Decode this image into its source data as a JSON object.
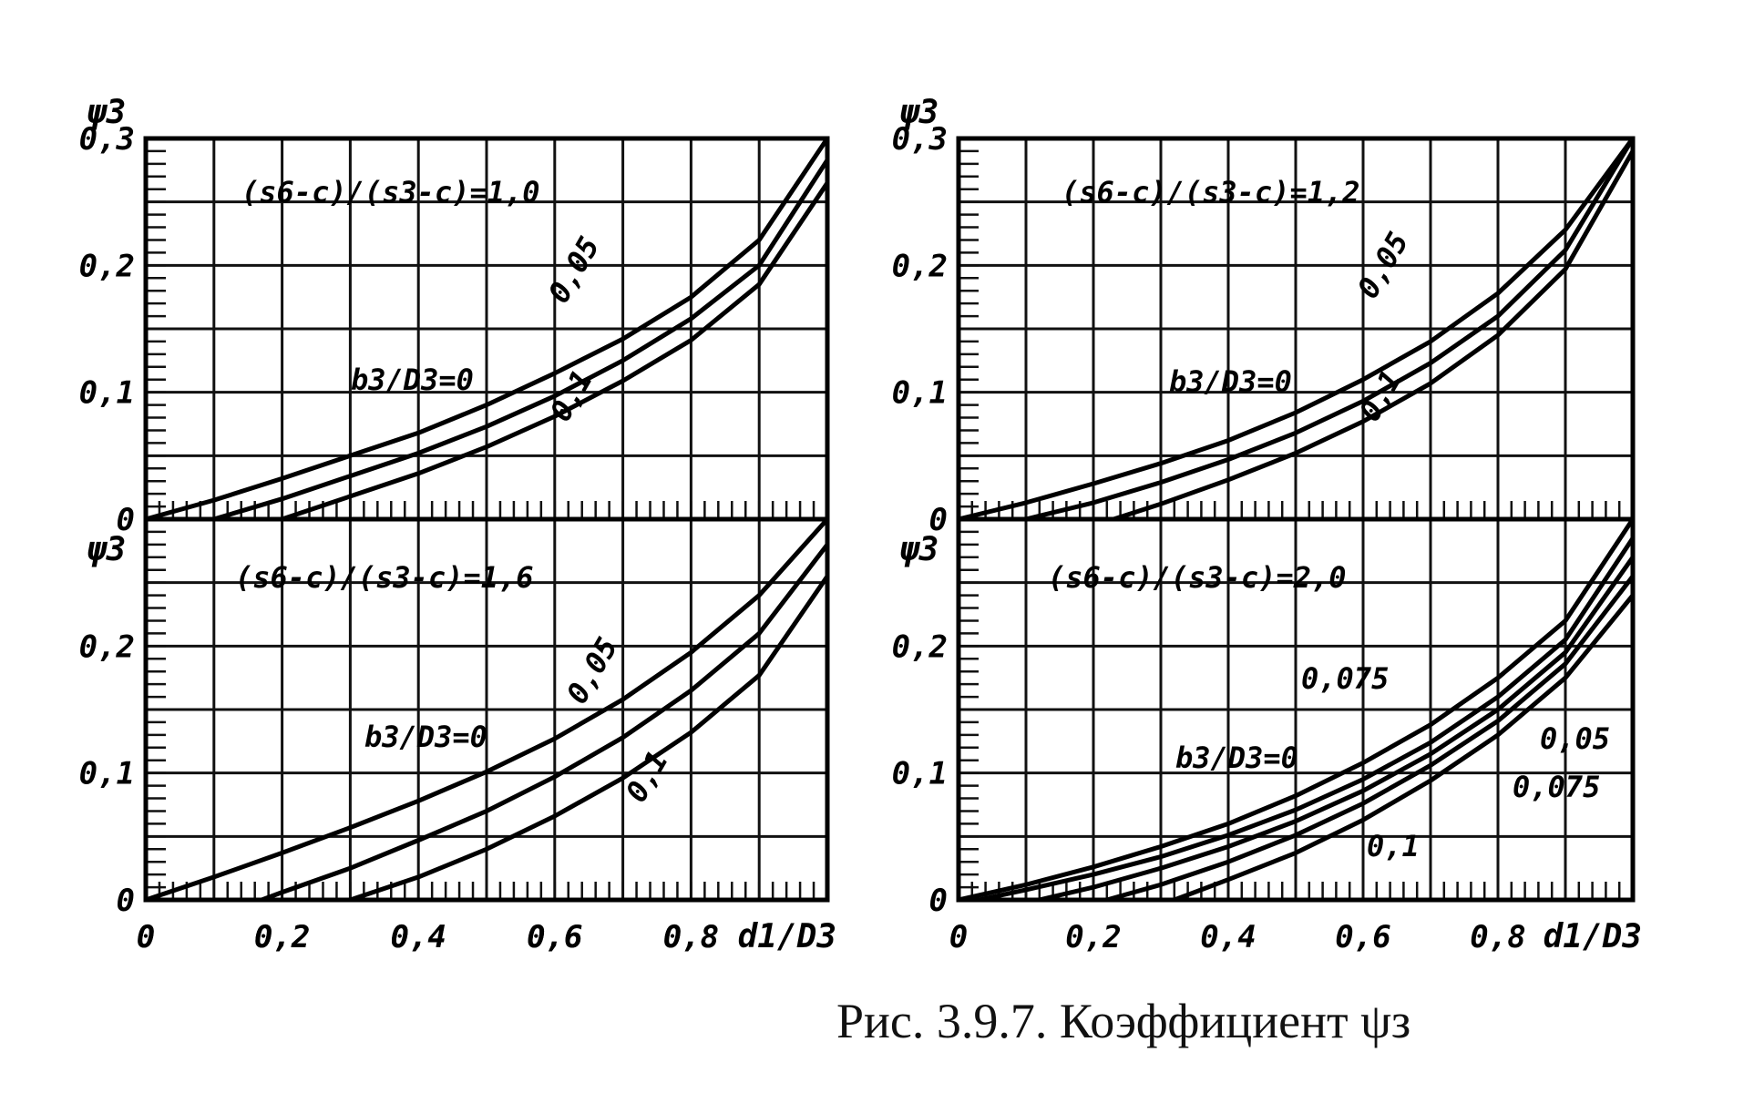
{
  "caption": "Рис. 3.9.7.  Коэффициент ψз",
  "chart_data": [
    {
      "type": "line",
      "ylabel": "ψ3",
      "xlabel": "",
      "xlim": [
        0,
        1.0
      ],
      "ylim": [
        0,
        0.3
      ],
      "x_ticks": [
        "0",
        "0,2",
        "0,4",
        "0,6",
        "0,8"
      ],
      "x_axis_label": "",
      "y_ticks": [
        "0",
        "0,1",
        "0,2",
        "0,3"
      ],
      "parameter_label": "(s6-c)/(s3-c)=1,0",
      "series_label": "b3/D3=0",
      "series": [
        {
          "name": "0",
          "x": [
            0,
            0.1,
            0.2,
            0.3,
            0.4,
            0.5,
            0.6,
            0.7,
            0.8,
            0.9,
            1.0
          ],
          "y": [
            0,
            0.015,
            0.032,
            0.05,
            0.068,
            0.09,
            0.115,
            0.142,
            0.175,
            0.22,
            0.3
          ]
        },
        {
          "name": "0,05",
          "x": [
            0.1,
            0.2,
            0.3,
            0.4,
            0.5,
            0.6,
            0.7,
            0.8,
            0.9,
            1.0
          ],
          "y": [
            0,
            0.016,
            0.034,
            0.052,
            0.073,
            0.097,
            0.125,
            0.158,
            0.2,
            0.283
          ]
        },
        {
          "name": "0,1",
          "x": [
            0.2,
            0.3,
            0.4,
            0.5,
            0.6,
            0.7,
            0.8,
            0.9,
            1.0
          ],
          "y": [
            0,
            0.018,
            0.036,
            0.057,
            0.081,
            0.109,
            0.141,
            0.185,
            0.265
          ]
        }
      ],
      "labels": [
        "0,05",
        "0,1"
      ]
    },
    {
      "type": "line",
      "ylabel": "ψ3",
      "xlabel": "",
      "xlim": [
        0,
        1.0
      ],
      "ylim": [
        0,
        0.3
      ],
      "x_ticks": [],
      "x_axis_label": "",
      "y_ticks": [
        "0",
        "0,1",
        "0,2",
        "0,3"
      ],
      "parameter_label": "(s6-c)/(s3-c)=1,2",
      "series_label": "b3/D3=0",
      "series": [
        {
          "name": "0",
          "x": [
            0,
            0.1,
            0.2,
            0.3,
            0.4,
            0.5,
            0.6,
            0.7,
            0.8,
            0.9,
            1.0
          ],
          "y": [
            0,
            0.013,
            0.028,
            0.044,
            0.062,
            0.084,
            0.11,
            0.14,
            0.178,
            0.228,
            0.3
          ]
        },
        {
          "name": "0,05",
          "x": [
            0.1,
            0.2,
            0.3,
            0.4,
            0.5,
            0.6,
            0.7,
            0.8,
            0.9,
            1.0
          ],
          "y": [
            0,
            0.013,
            0.029,
            0.047,
            0.068,
            0.093,
            0.123,
            0.16,
            0.212,
            0.3
          ]
        },
        {
          "name": "0,1",
          "x": [
            0.23,
            0.3,
            0.4,
            0.5,
            0.6,
            0.7,
            0.8,
            0.9,
            1.0
          ],
          "y": [
            0,
            0.012,
            0.031,
            0.052,
            0.077,
            0.107,
            0.145,
            0.197,
            0.29
          ]
        }
      ],
      "labels": [
        "0,05",
        "0,1"
      ]
    },
    {
      "type": "line",
      "ylabel": "ψ3",
      "xlabel": "",
      "xlim": [
        0,
        1.0
      ],
      "ylim": [
        0,
        0.3
      ],
      "x_ticks": [
        "0",
        "0,2",
        "0,4",
        "0,6",
        "0,8"
      ],
      "x_axis_label": "d1/D3",
      "y_ticks": [
        "0",
        "0,1",
        "0,2"
      ],
      "parameter_label": "(s6-c)/(s3-c)=1,6",
      "series_label": "b3/D3=0",
      "series": [
        {
          "name": "0",
          "x": [
            0,
            0.1,
            0.2,
            0.3,
            0.4,
            0.5,
            0.6,
            0.7,
            0.8,
            0.9,
            1.0
          ],
          "y": [
            0,
            0.018,
            0.037,
            0.057,
            0.078,
            0.101,
            0.127,
            0.158,
            0.195,
            0.24,
            0.3
          ]
        },
        {
          "name": "0,05",
          "x": [
            0.17,
            0.2,
            0.3,
            0.4,
            0.5,
            0.6,
            0.7,
            0.8,
            0.9,
            1.0
          ],
          "y": [
            0,
            0.006,
            0.025,
            0.047,
            0.07,
            0.097,
            0.128,
            0.165,
            0.21,
            0.28
          ]
        },
        {
          "name": "0,1",
          "x": [
            0.3,
            0.4,
            0.5,
            0.6,
            0.7,
            0.8,
            0.9,
            1.0
          ],
          "y": [
            0,
            0.018,
            0.04,
            0.066,
            0.096,
            0.132,
            0.177,
            0.255
          ]
        }
      ],
      "labels": [
        "0,05",
        "0,1"
      ]
    },
    {
      "type": "line",
      "ylabel": "ψ3",
      "xlabel": "",
      "xlim": [
        0,
        1.0
      ],
      "ylim": [
        0,
        0.3
      ],
      "x_ticks": [
        "0",
        "0,2",
        "0,4",
        "0,6",
        "0,8"
      ],
      "x_axis_label": "d1/D3",
      "y_ticks": [
        "0",
        "0,1",
        "0,2"
      ],
      "parameter_label": "(s6-c)/(s3-c)=2,0",
      "series_label": "b3/D3=0",
      "series": [
        {
          "name": "0",
          "x": [
            0,
            0.1,
            0.2,
            0.3,
            0.4,
            0.5,
            0.6,
            0.7,
            0.8,
            0.9,
            1.0
          ],
          "y": [
            0,
            0.012,
            0.026,
            0.042,
            0.06,
            0.082,
            0.108,
            0.138,
            0.175,
            0.22,
            0.3
          ]
        },
        {
          "name": "0,075",
          "x": [
            0.03,
            0.1,
            0.2,
            0.3,
            0.4,
            0.5,
            0.6,
            0.7,
            0.8,
            0.9,
            1.0
          ],
          "y": [
            0,
            0.008,
            0.02,
            0.034,
            0.051,
            0.071,
            0.095,
            0.124,
            0.16,
            0.205,
            0.285
          ]
        },
        {
          "name": "0,05",
          "x": [
            0.12,
            0.2,
            0.3,
            0.4,
            0.5,
            0.6,
            0.7,
            0.8,
            0.9,
            1.0
          ],
          "y": [
            0,
            0.01,
            0.025,
            0.042,
            0.062,
            0.086,
            0.115,
            0.15,
            0.195,
            0.27
          ]
        },
        {
          "name": "0,075",
          "x": [
            0.22,
            0.3,
            0.4,
            0.5,
            0.6,
            0.7,
            0.8,
            0.9,
            1.0
          ],
          "y": [
            0,
            0.012,
            0.03,
            0.051,
            0.076,
            0.106,
            0.141,
            0.186,
            0.255
          ]
        },
        {
          "name": "0,1",
          "x": [
            0.32,
            0.4,
            0.5,
            0.6,
            0.7,
            0.8,
            0.9,
            1.0
          ],
          "y": [
            0,
            0.016,
            0.037,
            0.063,
            0.094,
            0.13,
            0.175,
            0.24
          ]
        }
      ],
      "labels": [
        "0,075",
        "0,05",
        "0,075",
        "0,1"
      ]
    }
  ]
}
